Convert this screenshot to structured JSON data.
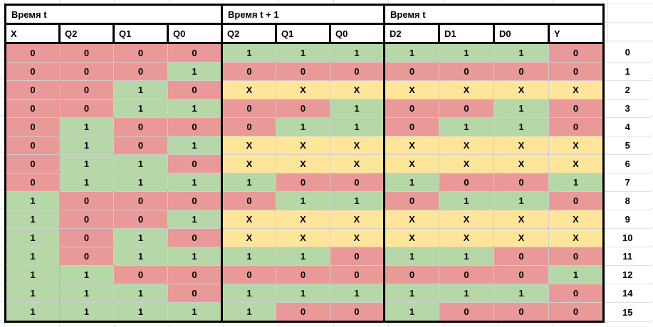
{
  "colors": {
    "zero_cell": "#ea9999",
    "one_cell": "#b6d7a8",
    "dont_care_cell": "#ffe599",
    "border": "#000000",
    "gridline": "#e2e2e2",
    "text": "#000000"
  },
  "table": {
    "header_groups": [
      {
        "title": "Время t",
        "columns": [
          "X",
          "Q2",
          "Q1",
          "Q0"
        ]
      },
      {
        "title": "Время t + 1",
        "columns": [
          "Q2",
          "Q1",
          "Q0"
        ]
      },
      {
        "title": "Время t",
        "columns": [
          "D2",
          "D1",
          "D0",
          "Y"
        ]
      }
    ],
    "rows": [
      {
        "label": "0",
        "t": [
          "0",
          "0",
          "0",
          "0"
        ],
        "t_plus_1": [
          "1",
          "1",
          "1"
        ],
        "d": [
          "1",
          "1",
          "1",
          "0"
        ]
      },
      {
        "label": "1",
        "t": [
          "0",
          "0",
          "0",
          "1"
        ],
        "t_plus_1": [
          "0",
          "0",
          "0"
        ],
        "d": [
          "0",
          "0",
          "0",
          "0"
        ]
      },
      {
        "label": "2",
        "t": [
          "0",
          "0",
          "1",
          "0"
        ],
        "t_plus_1": [
          "X",
          "X",
          "X"
        ],
        "d": [
          "X",
          "X",
          "X",
          "X"
        ]
      },
      {
        "label": "3",
        "t": [
          "0",
          "0",
          "1",
          "1"
        ],
        "t_plus_1": [
          "0",
          "0",
          "1"
        ],
        "d": [
          "0",
          "0",
          "1",
          "0"
        ]
      },
      {
        "label": "4",
        "t": [
          "0",
          "1",
          "0",
          "0"
        ],
        "t_plus_1": [
          "0",
          "1",
          "1"
        ],
        "d": [
          "0",
          "1",
          "1",
          "0"
        ]
      },
      {
        "label": "5",
        "t": [
          "0",
          "1",
          "0",
          "1"
        ],
        "t_plus_1": [
          "X",
          "X",
          "X"
        ],
        "d": [
          "X",
          "X",
          "X",
          "X"
        ]
      },
      {
        "label": "6",
        "t": [
          "0",
          "1",
          "1",
          "0"
        ],
        "t_plus_1": [
          "X",
          "X",
          "X"
        ],
        "d": [
          "X",
          "X",
          "X",
          "X"
        ]
      },
      {
        "label": "7",
        "t": [
          "0",
          "1",
          "1",
          "1"
        ],
        "t_plus_1": [
          "1",
          "0",
          "0"
        ],
        "d": [
          "1",
          "0",
          "0",
          "1"
        ]
      },
      {
        "label": "8",
        "t": [
          "1",
          "0",
          "0",
          "0"
        ],
        "t_plus_1": [
          "0",
          "1",
          "1"
        ],
        "d": [
          "0",
          "1",
          "1",
          "0"
        ]
      },
      {
        "label": "9",
        "t": [
          "1",
          "0",
          "0",
          "1"
        ],
        "t_plus_1": [
          "X",
          "X",
          "X"
        ],
        "d": [
          "X",
          "X",
          "X",
          "X"
        ]
      },
      {
        "label": "10",
        "t": [
          "1",
          "0",
          "1",
          "0"
        ],
        "t_plus_1": [
          "X",
          "X",
          "X"
        ],
        "d": [
          "X",
          "X",
          "X",
          "X"
        ]
      },
      {
        "label": "11",
        "t": [
          "1",
          "0",
          "1",
          "1"
        ],
        "t_plus_1": [
          "1",
          "1",
          "0"
        ],
        "d": [
          "1",
          "1",
          "0",
          "0"
        ]
      },
      {
        "label": "12",
        "t": [
          "1",
          "1",
          "0",
          "0"
        ],
        "t_plus_1": [
          "0",
          "0",
          "0"
        ],
        "d": [
          "0",
          "0",
          "0",
          "1"
        ]
      },
      {
        "label": "14",
        "t": [
          "1",
          "1",
          "1",
          "0"
        ],
        "t_plus_1": [
          "1",
          "1",
          "1"
        ],
        "d": [
          "1",
          "1",
          "1",
          "0"
        ]
      },
      {
        "label": "15",
        "t": [
          "1",
          "1",
          "1",
          "1"
        ],
        "t_plus_1": [
          "1",
          "0",
          "0"
        ],
        "d": [
          "1",
          "0",
          "0",
          "0"
        ]
      }
    ]
  }
}
